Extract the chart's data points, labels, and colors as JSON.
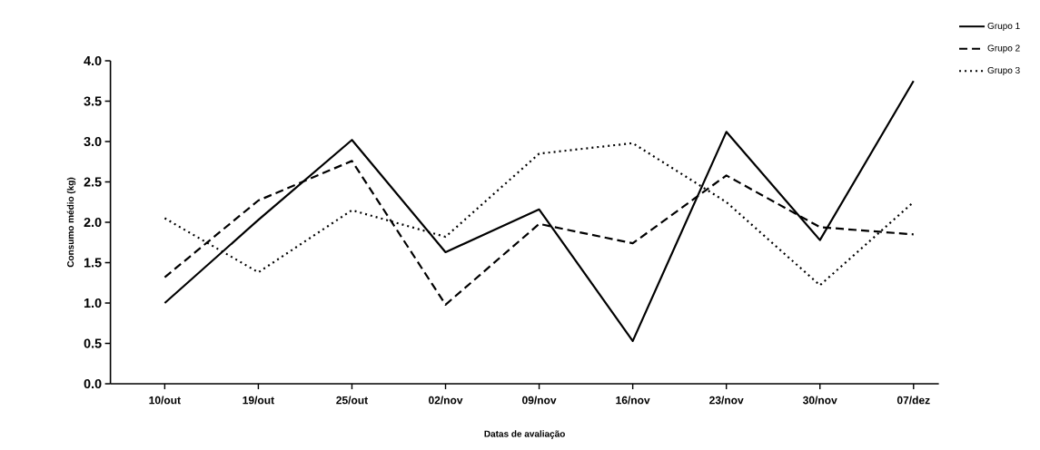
{
  "chart_data": {
    "type": "line",
    "xlabel": "Datas de avaliação",
    "ylabel": "Consumo médio (kg)",
    "categories": [
      "10/out",
      "19/out",
      "25/out",
      "02/nov",
      "09/nov",
      "16/nov",
      "23/nov",
      "30/nov",
      "07/dez"
    ],
    "series": [
      {
        "name": "Grupo 1",
        "color": "#000000",
        "line_style": "solid",
        "values": [
          1.0,
          2.03,
          3.02,
          1.63,
          2.16,
          0.53,
          3.12,
          1.78,
          3.75
        ]
      },
      {
        "name": "Grupo 2",
        "color": "#000000",
        "line_style": "dashed",
        "values": [
          1.32,
          2.27,
          2.76,
          0.98,
          1.98,
          1.74,
          2.58,
          1.94,
          1.85
        ]
      },
      {
        "name": "Grupo 3",
        "color": "#000000",
        "line_style": "dotted",
        "values": [
          2.05,
          1.38,
          2.15,
          1.82,
          2.85,
          2.98,
          2.25,
          1.22,
          2.25
        ]
      }
    ],
    "ylim": [
      0,
      4
    ],
    "yticks": [
      {
        "value": 0,
        "label": "0.0"
      },
      {
        "value": 0.5,
        "label": "0.5"
      },
      {
        "value": 1,
        "label": "1.0"
      },
      {
        "value": 1.5,
        "label": "1.5"
      },
      {
        "value": 2,
        "label": "2.0"
      },
      {
        "value": 2.5,
        "label": "2.5"
      },
      {
        "value": 3,
        "label": "3.0"
      },
      {
        "value": 3.5,
        "label": "3.5"
      },
      {
        "value": 4,
        "label": "4.0"
      }
    ],
    "grid": false,
    "legend": "top right",
    "marker": "none"
  }
}
